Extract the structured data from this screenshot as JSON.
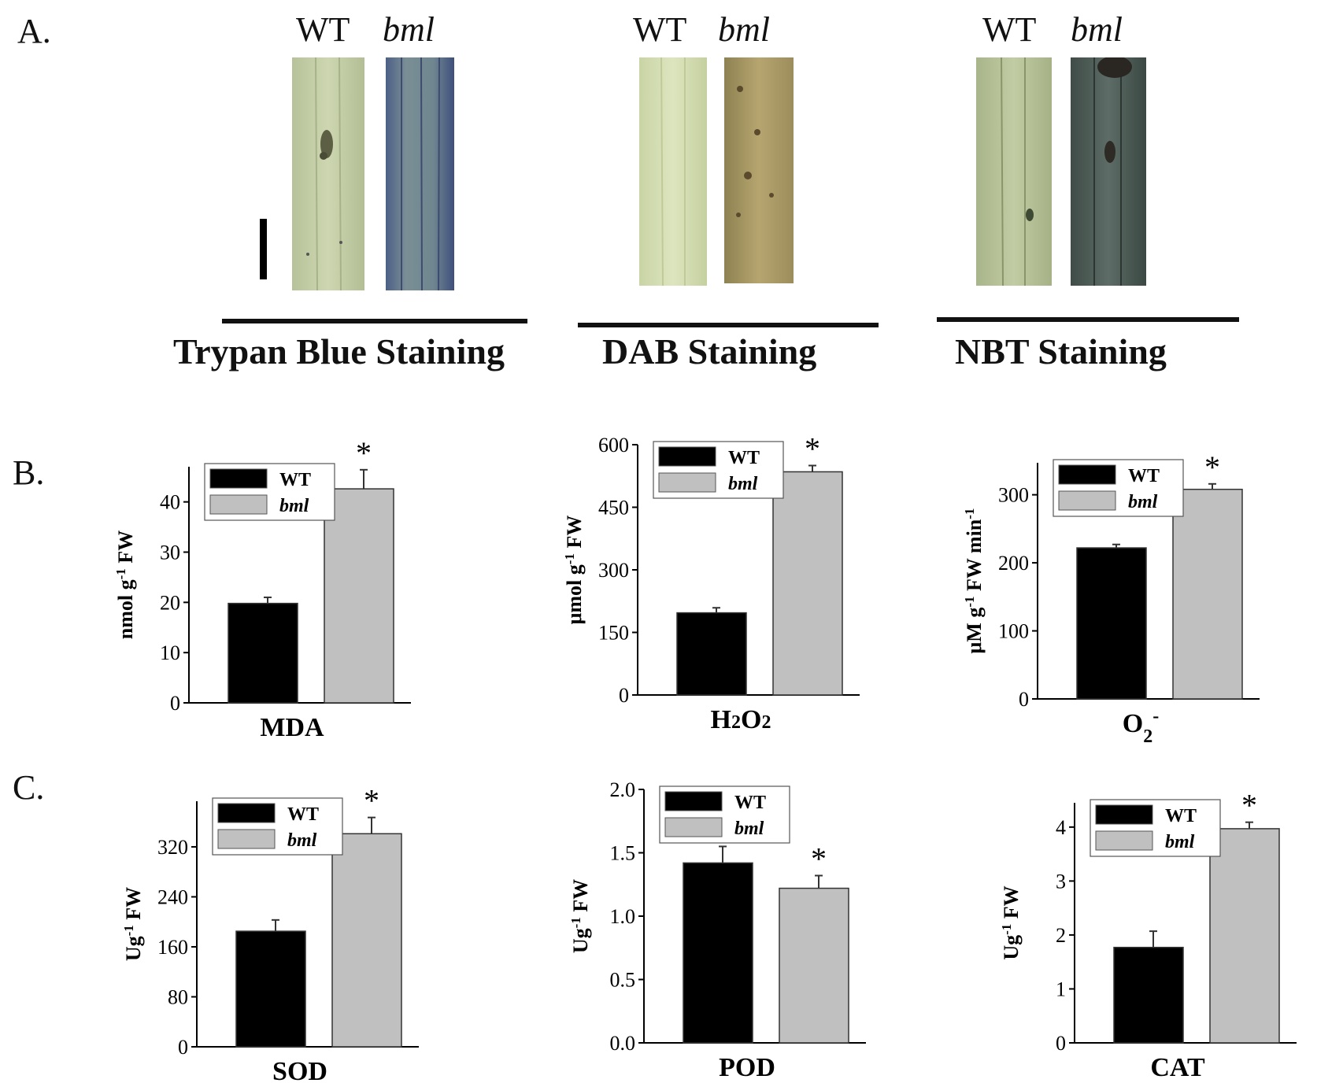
{
  "panels": {
    "a": "A.",
    "b": "B.",
    "c": "C."
  },
  "staining": [
    {
      "id": "trypan",
      "wt_label": "WT",
      "mut_label": "bml",
      "label": "Trypan Blue Staining",
      "colors": {
        "wt": "#c5cfa6",
        "mut": "#5f7a9a"
      }
    },
    {
      "id": "dab",
      "wt_label": "WT",
      "mut_label": "bml",
      "label": "DAB Staining",
      "colors": {
        "wt": "#d6e0b2",
        "mut": "#a99762"
      }
    },
    {
      "id": "nbt",
      "wt_label": "WT",
      "mut_label": "bml",
      "label": "NBT Staining",
      "colors": {
        "wt": "#b8c39a",
        "mut": "#4d5d58"
      }
    }
  ],
  "series_colors": {
    "WT": "#000000",
    "bml": "#c0c0c0"
  },
  "chart_data": [
    {
      "id": "mda",
      "type": "bar",
      "title": "MDA",
      "ylabel": "nmol g-1 FW",
      "ylabel_parts": [
        "nmol g",
        "-1",
        " FW"
      ],
      "series": [
        {
          "name": "WT",
          "values": [
            19.8
          ],
          "error": [
            1.2
          ]
        },
        {
          "name": "bml",
          "values": [
            42.6
          ],
          "error": [
            3.8
          ]
        }
      ],
      "ylim": [
        0,
        47
      ],
      "yticks": [
        0,
        10,
        20,
        30,
        40
      ],
      "significance": [
        "",
        "*"
      ],
      "legend": "top-left"
    },
    {
      "id": "h2o2",
      "type": "bar",
      "title": "H2O2",
      "ylabel": "μmol g-1 FW",
      "ylabel_parts": [
        "μmol g",
        "-1",
        " FW"
      ],
      "series": [
        {
          "name": "WT",
          "values": [
            197
          ],
          "error": [
            12
          ]
        },
        {
          "name": "bml",
          "values": [
            535
          ],
          "error": [
            15
          ]
        }
      ],
      "ylim": [
        0,
        600
      ],
      "yticks": [
        0,
        150,
        300,
        450,
        600
      ],
      "significance": [
        "",
        "*"
      ],
      "legend": "top-left"
    },
    {
      "id": "o2",
      "type": "bar",
      "title": "O2-",
      "ylabel": "μM g-1 FW min-1",
      "ylabel_parts": [
        "μM g",
        "-1",
        " FW min",
        "-1"
      ],
      "series": [
        {
          "name": "WT",
          "values": [
            222
          ],
          "error": [
            5
          ]
        },
        {
          "name": "bml",
          "values": [
            308
          ],
          "error": [
            8
          ]
        }
      ],
      "ylim": [
        0,
        347
      ],
      "yticks": [
        0,
        100,
        200,
        300
      ],
      "significance": [
        "",
        "*"
      ],
      "legend": "top-left"
    },
    {
      "id": "sod",
      "type": "bar",
      "title": "SOD",
      "ylabel": "Ug-1 FW",
      "ylabel_parts": [
        "Ug",
        "-1",
        " FW"
      ],
      "series": [
        {
          "name": "WT",
          "values": [
            185
          ],
          "error": [
            18
          ]
        },
        {
          "name": "bml",
          "values": [
            341
          ],
          "error": [
            26
          ]
        }
      ],
      "ylim": [
        0,
        393
      ],
      "yticks": [
        0,
        80,
        160,
        240,
        320
      ],
      "significance": [
        "",
        "*"
      ],
      "legend": "top-left"
    },
    {
      "id": "pod",
      "type": "bar",
      "title": "POD",
      "ylabel": "Ug-1 FW",
      "ylabel_parts": [
        "Ug",
        "-1",
        " FW"
      ],
      "series": [
        {
          "name": "WT",
          "values": [
            1.42
          ],
          "error": [
            0.13
          ]
        },
        {
          "name": "bml",
          "values": [
            1.22
          ],
          "error": [
            0.1
          ]
        }
      ],
      "ylim": [
        0,
        2.0
      ],
      "yticks": [
        "0.0",
        "0.5",
        "1.0",
        "1.5",
        "2.0"
      ],
      "significance": [
        "",
        "*"
      ],
      "legend": "top-left"
    },
    {
      "id": "cat",
      "type": "bar",
      "title": "CAT",
      "ylabel": "Ug-1 FW",
      "ylabel_parts": [
        "Ug",
        "-1",
        " FW"
      ],
      "series": [
        {
          "name": "WT",
          "values": [
            1.77
          ],
          "error": [
            0.3
          ]
        },
        {
          "name": "bml",
          "values": [
            3.97
          ],
          "error": [
            0.12
          ]
        }
      ],
      "ylim": [
        0,
        4.45
      ],
      "yticks": [
        0,
        1,
        2,
        3,
        4
      ],
      "significance": [
        "",
        "*"
      ],
      "legend": "top-left"
    }
  ]
}
